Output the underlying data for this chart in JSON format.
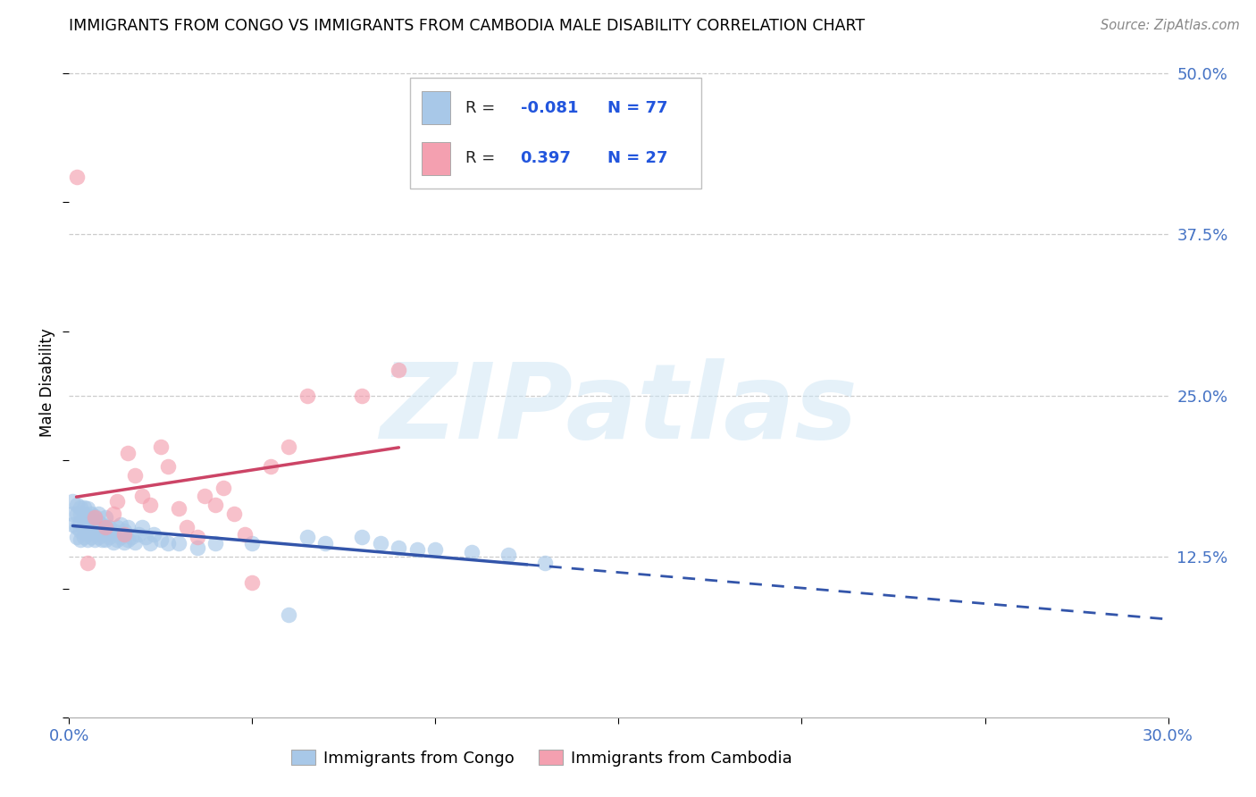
{
  "title": "IMMIGRANTS FROM CONGO VS IMMIGRANTS FROM CAMBODIA MALE DISABILITY CORRELATION CHART",
  "source": "Source: ZipAtlas.com",
  "ylabel": "Male Disability",
  "xlim": [
    0.0,
    0.3
  ],
  "ylim": [
    0.0,
    0.52
  ],
  "xtick_positions": [
    0.0,
    0.05,
    0.1,
    0.15,
    0.2,
    0.25,
    0.3
  ],
  "xtick_labels": [
    "0.0%",
    "",
    "",
    "",
    "",
    "",
    "30.0%"
  ],
  "ytick_positions": [
    0.125,
    0.25,
    0.375,
    0.5
  ],
  "ytick_labels": [
    "12.5%",
    "25.0%",
    "37.5%",
    "50.0%"
  ],
  "congo_color": "#a8c8e8",
  "cambodia_color": "#f4a0b0",
  "congo_line_color": "#3355aa",
  "cambodia_line_color": "#cc4466",
  "watermark_text": "ZIPatlas",
  "legend_label_1": "Immigrants from Congo",
  "legend_label_2": "Immigrants from Cambodia",
  "congo_x": [
    0.001,
    0.001,
    0.001,
    0.002,
    0.002,
    0.002,
    0.002,
    0.003,
    0.003,
    0.003,
    0.003,
    0.003,
    0.004,
    0.004,
    0.004,
    0.004,
    0.004,
    0.005,
    0.005,
    0.005,
    0.005,
    0.005,
    0.006,
    0.006,
    0.006,
    0.006,
    0.007,
    0.007,
    0.007,
    0.007,
    0.008,
    0.008,
    0.008,
    0.008,
    0.009,
    0.009,
    0.009,
    0.01,
    0.01,
    0.01,
    0.01,
    0.011,
    0.011,
    0.012,
    0.012,
    0.013,
    0.013,
    0.014,
    0.014,
    0.015,
    0.015,
    0.016,
    0.016,
    0.017,
    0.018,
    0.019,
    0.02,
    0.021,
    0.022,
    0.023,
    0.025,
    0.027,
    0.03,
    0.035,
    0.04,
    0.05,
    0.06,
    0.065,
    0.07,
    0.08,
    0.085,
    0.09,
    0.095,
    0.1,
    0.11,
    0.12,
    0.13
  ],
  "congo_y": [
    0.15,
    0.158,
    0.168,
    0.14,
    0.148,
    0.158,
    0.165,
    0.138,
    0.145,
    0.152,
    0.158,
    0.163,
    0.14,
    0.147,
    0.153,
    0.158,
    0.163,
    0.138,
    0.143,
    0.15,
    0.156,
    0.162,
    0.14,
    0.146,
    0.152,
    0.158,
    0.138,
    0.144,
    0.15,
    0.156,
    0.14,
    0.146,
    0.152,
    0.158,
    0.138,
    0.144,
    0.15,
    0.138,
    0.143,
    0.148,
    0.155,
    0.14,
    0.148,
    0.136,
    0.145,
    0.138,
    0.148,
    0.14,
    0.15,
    0.136,
    0.145,
    0.138,
    0.148,
    0.14,
    0.136,
    0.142,
    0.148,
    0.14,
    0.135,
    0.142,
    0.138,
    0.135,
    0.135,
    0.132,
    0.135,
    0.135,
    0.08,
    0.14,
    0.135,
    0.14,
    0.135,
    0.132,
    0.13,
    0.13,
    0.128,
    0.126,
    0.12
  ],
  "cambodia_x": [
    0.002,
    0.005,
    0.007,
    0.01,
    0.012,
    0.013,
    0.015,
    0.016,
    0.018,
    0.02,
    0.022,
    0.025,
    0.027,
    0.03,
    0.032,
    0.035,
    0.037,
    0.04,
    0.042,
    0.045,
    0.048,
    0.05,
    0.055,
    0.06,
    0.065,
    0.08,
    0.09
  ],
  "cambodia_y": [
    0.42,
    0.12,
    0.155,
    0.148,
    0.158,
    0.168,
    0.142,
    0.205,
    0.188,
    0.172,
    0.165,
    0.21,
    0.195,
    0.162,
    0.148,
    0.14,
    0.172,
    0.165,
    0.178,
    0.158,
    0.142,
    0.105,
    0.195,
    0.21,
    0.25,
    0.25,
    0.27
  ],
  "congo_line_x0": 0.001,
  "congo_line_x1": 0.125,
  "congo_line_x_dash_end": 0.3,
  "cambodia_line_x0": 0.002,
  "cambodia_line_x1": 0.09
}
